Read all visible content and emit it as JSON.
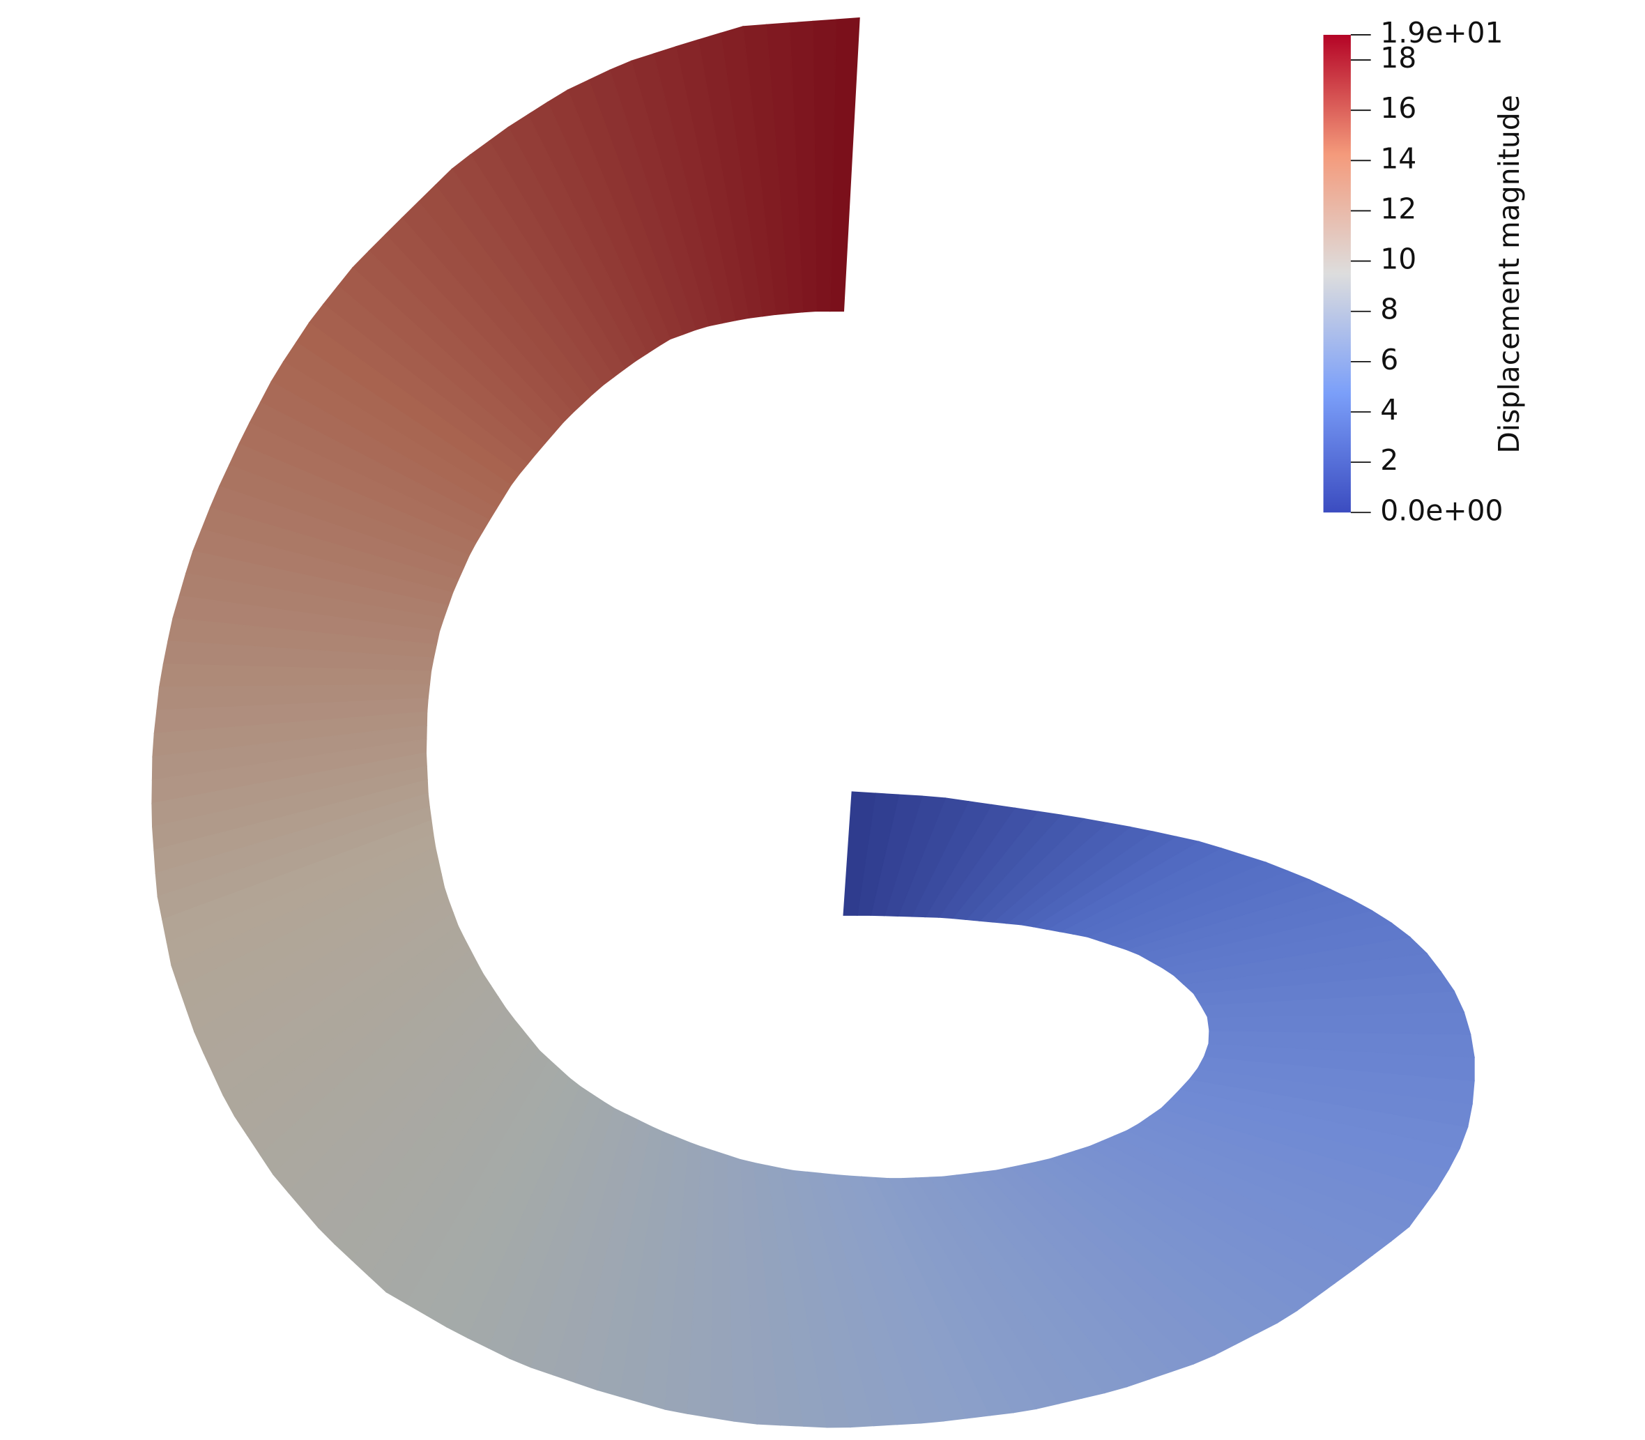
{
  "colorbar": {
    "title": "Displacement magnitude",
    "range": [
      0,
      19
    ],
    "ticks": [
      {
        "value": 19,
        "label": "1.9e+01"
      },
      18,
      16,
      14,
      12,
      10,
      8,
      6,
      4,
      2,
      {
        "value": 0,
        "label": "0.0e+00"
      }
    ]
  }
}
